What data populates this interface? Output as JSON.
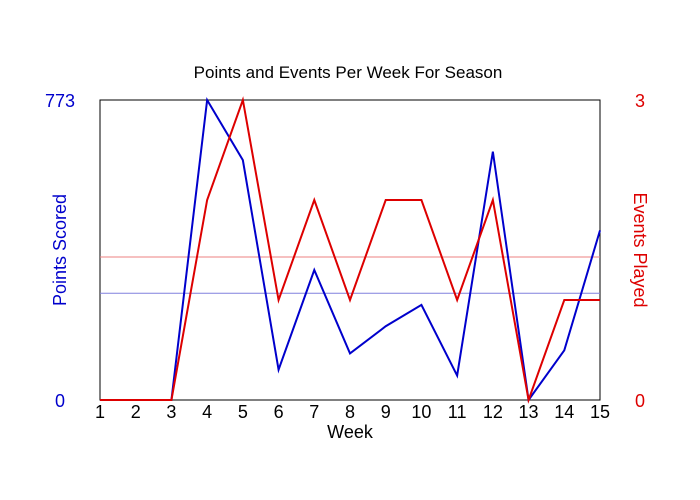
{
  "chart_data": {
    "type": "line",
    "title": "Points and Events Per Week For Season",
    "xlabel": "Week",
    "ylabel_left": "Points Scored",
    "ylabel_right": "Events Played",
    "x": [
      1,
      2,
      3,
      4,
      5,
      6,
      7,
      8,
      9,
      10,
      11,
      12,
      13,
      14,
      15
    ],
    "xlim": [
      1,
      15
    ],
    "ylim_left": [
      0,
      773
    ],
    "ylim_right": [
      0,
      3
    ],
    "left_tick_labels": [
      "0",
      "773"
    ],
    "right_tick_labels": [
      "0",
      "3"
    ],
    "grid": false,
    "colors": {
      "points": "#0000cc",
      "events": "#dd0000",
      "points_avg": "#8080dd",
      "events_avg": "#ee8080"
    },
    "series": [
      {
        "axis": "left",
        "values": [
          0,
          0,
          0,
          773,
          618,
          78,
          335,
          120,
          190,
          245,
          63,
          640,
          0,
          128,
          437
        ]
      },
      {
        "axis": "right",
        "values": [
          0,
          0,
          0,
          2,
          3,
          1,
          2,
          1,
          2,
          2,
          1,
          2,
          0,
          1,
          1
        ]
      }
    ],
    "reference_lines": [
      {
        "axis": "left",
        "value": 275
      },
      {
        "axis": "right",
        "value": 1.43
      }
    ]
  }
}
